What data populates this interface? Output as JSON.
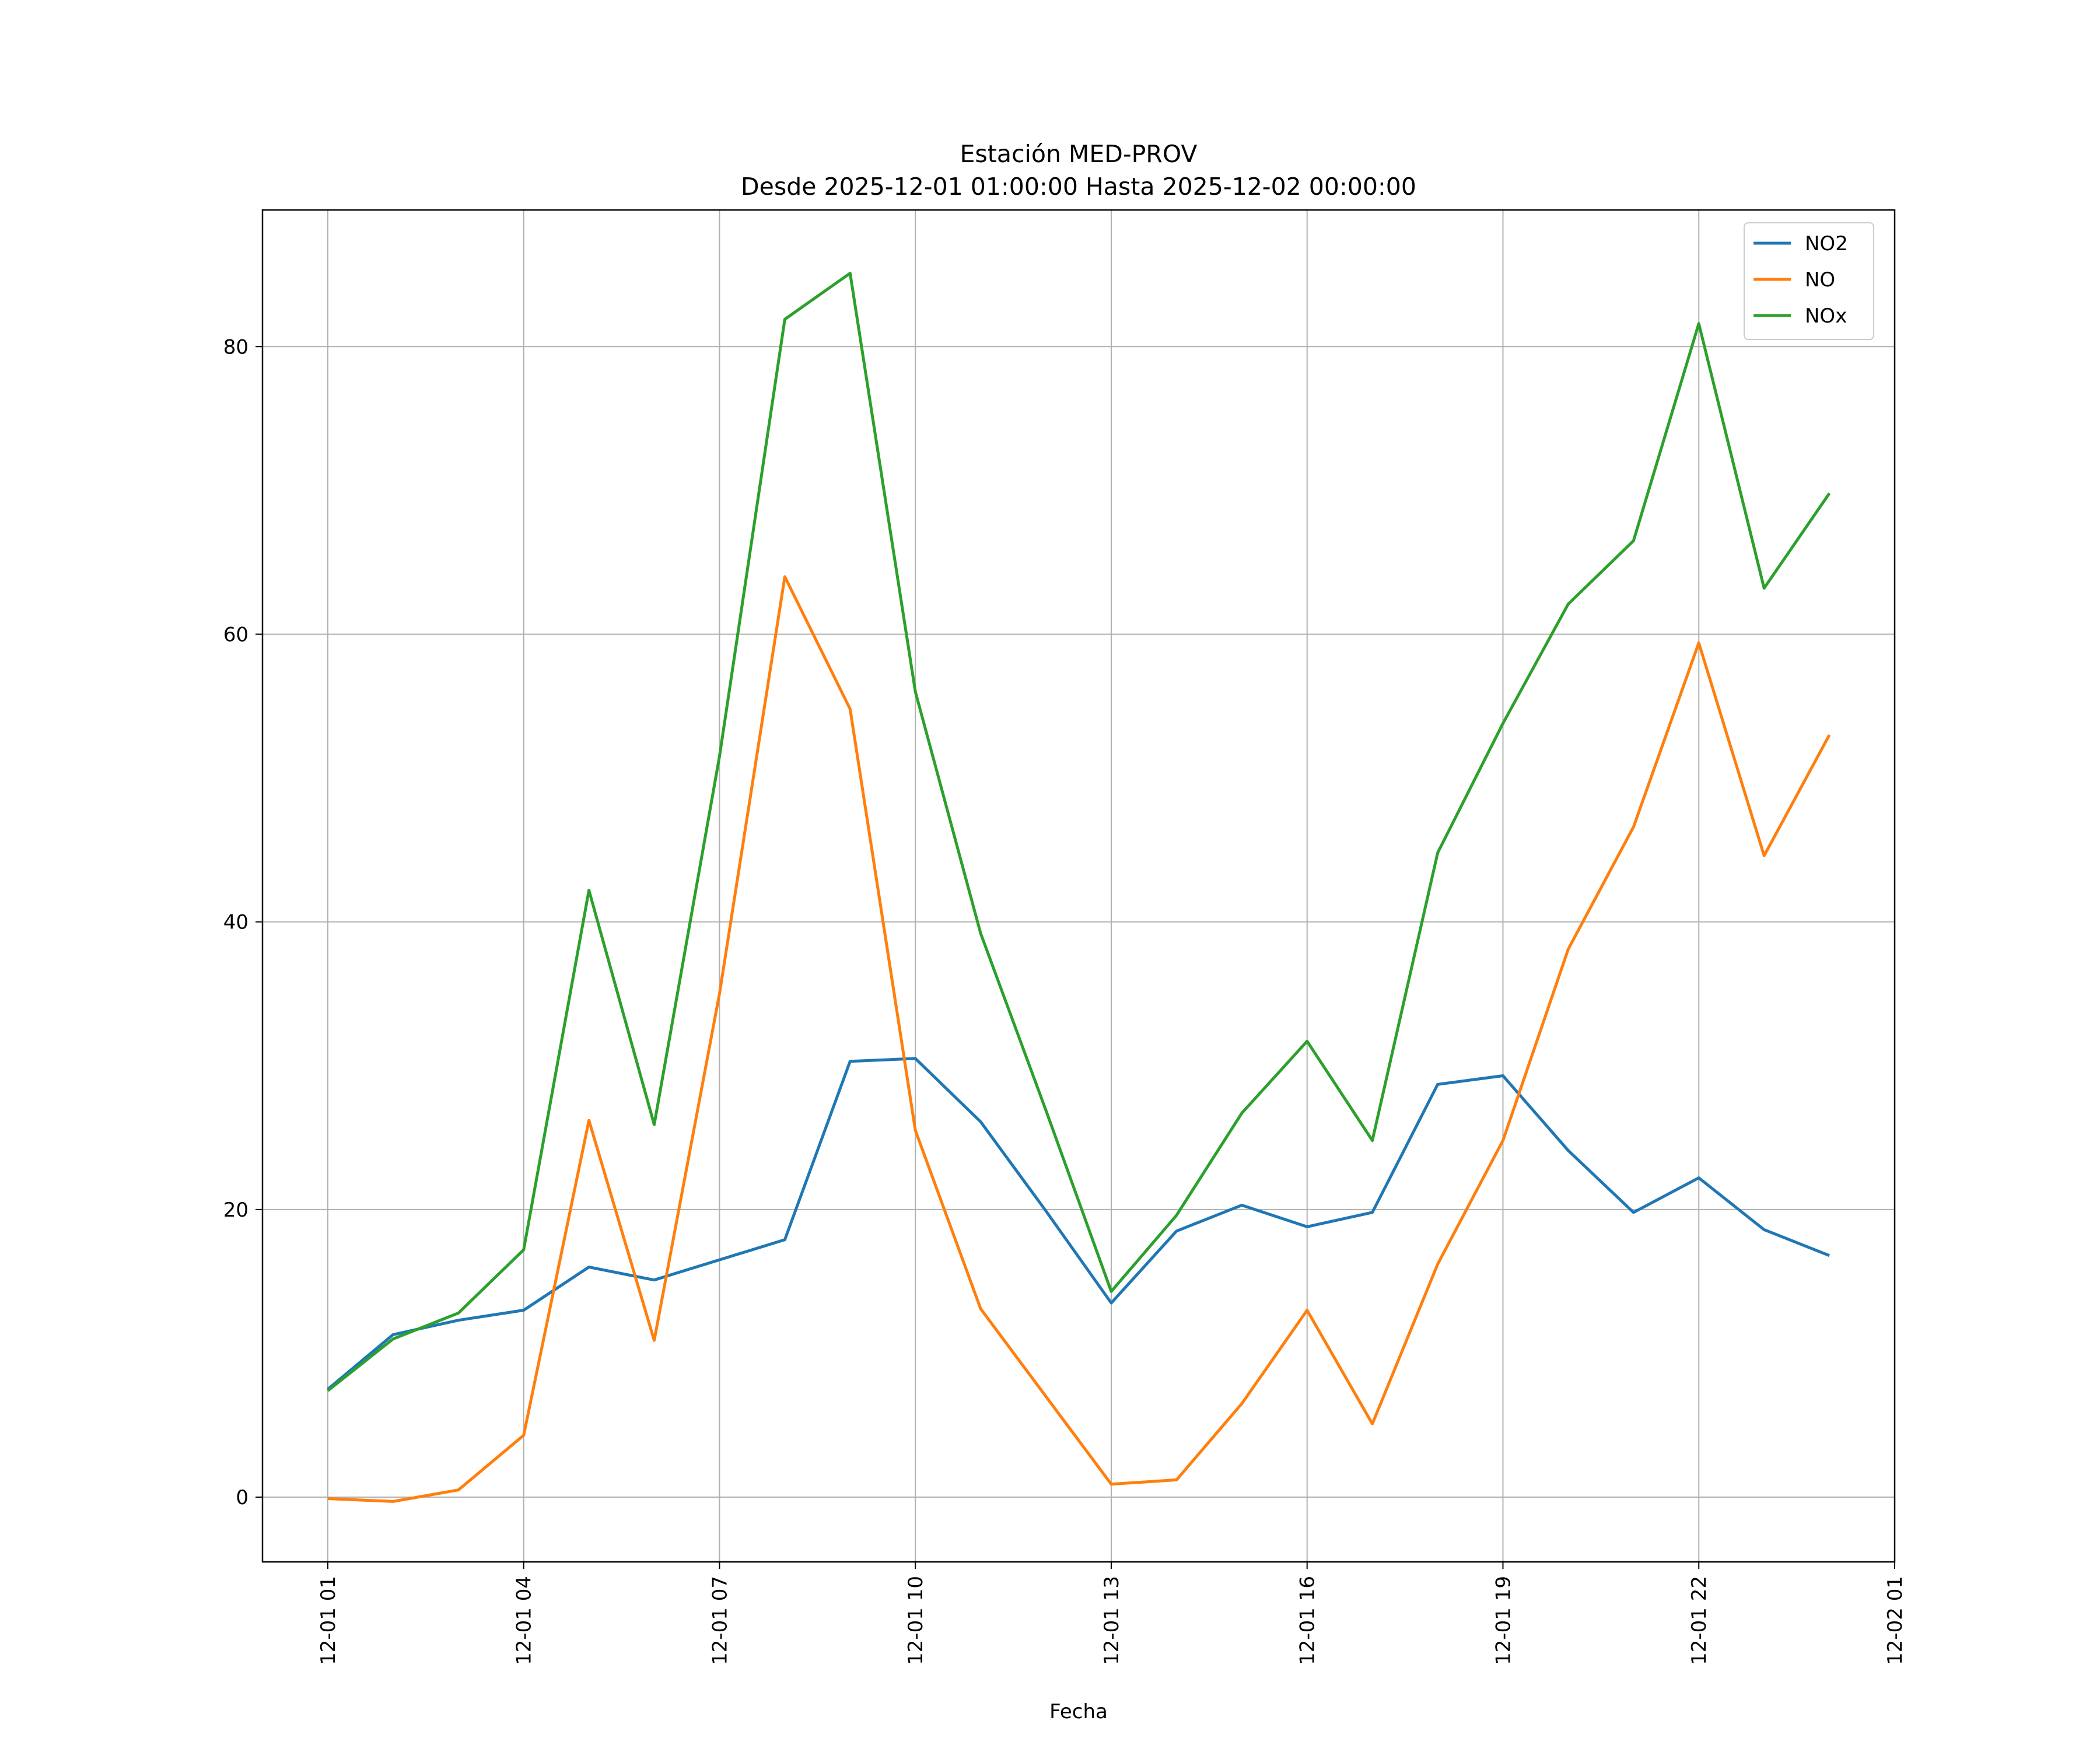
{
  "chart_data": {
    "type": "line",
    "title": "Estación MED-PROV",
    "subtitle": "Desde 2025-12-01 01:00:00 Hasta 2025-12-02 00:00:00",
    "xlabel": "Fecha",
    "ylabel": "",
    "x": [
      "2025-12-01 01:00",
      "2025-12-01 02:00",
      "2025-12-01 03:00",
      "2025-12-01 04:00",
      "2025-12-01 05:00",
      "2025-12-01 06:00",
      "2025-12-01 07:00",
      "2025-12-01 08:00",
      "2025-12-01 09:00",
      "2025-12-01 10:00",
      "2025-12-01 11:00",
      "2025-12-01 12:00",
      "2025-12-01 13:00",
      "2025-12-01 14:00",
      "2025-12-01 15:00",
      "2025-12-01 16:00",
      "2025-12-01 17:00",
      "2025-12-01 18:00",
      "2025-12-01 19:00",
      "2025-12-01 20:00",
      "2025-12-01 21:00",
      "2025-12-01 22:00",
      "2025-12-01 23:00",
      "2025-12-02 00:00"
    ],
    "xlim": [
      "2025-12-01 00:00",
      "2025-12-02 01:00"
    ],
    "ylim": [
      -4.5,
      89.5
    ],
    "x_ticks": [
      {
        "value": "2025-12-01 01:00",
        "label": "12-01 01"
      },
      {
        "value": "2025-12-01 04:00",
        "label": "12-01 04"
      },
      {
        "value": "2025-12-01 07:00",
        "label": "12-01 07"
      },
      {
        "value": "2025-12-01 10:00",
        "label": "12-01 10"
      },
      {
        "value": "2025-12-01 13:00",
        "label": "12-01 13"
      },
      {
        "value": "2025-12-01 16:00",
        "label": "12-01 16"
      },
      {
        "value": "2025-12-01 19:00",
        "label": "12-01 19"
      },
      {
        "value": "2025-12-01 22:00",
        "label": "12-01 22"
      },
      {
        "value": "2025-12-02 01:00",
        "label": "12-02 01"
      }
    ],
    "y_ticks": [
      {
        "value": 0,
        "label": "0"
      },
      {
        "value": 20,
        "label": "20"
      },
      {
        "value": 40,
        "label": "40"
      },
      {
        "value": 60,
        "label": "60"
      },
      {
        "value": 80,
        "label": "80"
      }
    ],
    "grid": true,
    "legend_position": "top-right",
    "series": [
      {
        "name": "NO2",
        "color": "#1f77b4",
        "values": [
          7.5,
          11.3,
          12.3,
          13.0,
          16.0,
          15.1,
          16.5,
          17.9,
          30.3,
          30.5,
          26.1,
          19.9,
          13.5,
          18.5,
          20.3,
          18.8,
          19.8,
          28.7,
          29.3,
          24.1,
          19.8,
          22.2,
          18.6,
          16.8
        ]
      },
      {
        "name": "NO",
        "color": "#ff7f0e",
        "values": [
          -0.1,
          -0.3,
          0.5,
          4.3,
          26.2,
          10.9,
          35.0,
          64.0,
          54.8,
          25.5,
          13.1,
          7.0,
          0.9,
          1.2,
          6.5,
          13.0,
          5.1,
          16.2,
          24.8,
          38.1,
          46.6,
          59.4,
          44.6,
          53.0
        ]
      },
      {
        "name": "NOx",
        "color": "#2ca02c",
        "values": [
          7.4,
          11.0,
          12.8,
          17.2,
          42.2,
          25.9,
          51.5,
          81.9,
          85.1,
          56.0,
          39.2,
          26.9,
          14.3,
          19.6,
          26.7,
          31.7,
          24.8,
          44.8,
          53.8,
          62.1,
          66.5,
          81.6,
          63.2,
          69.8
        ]
      }
    ]
  }
}
